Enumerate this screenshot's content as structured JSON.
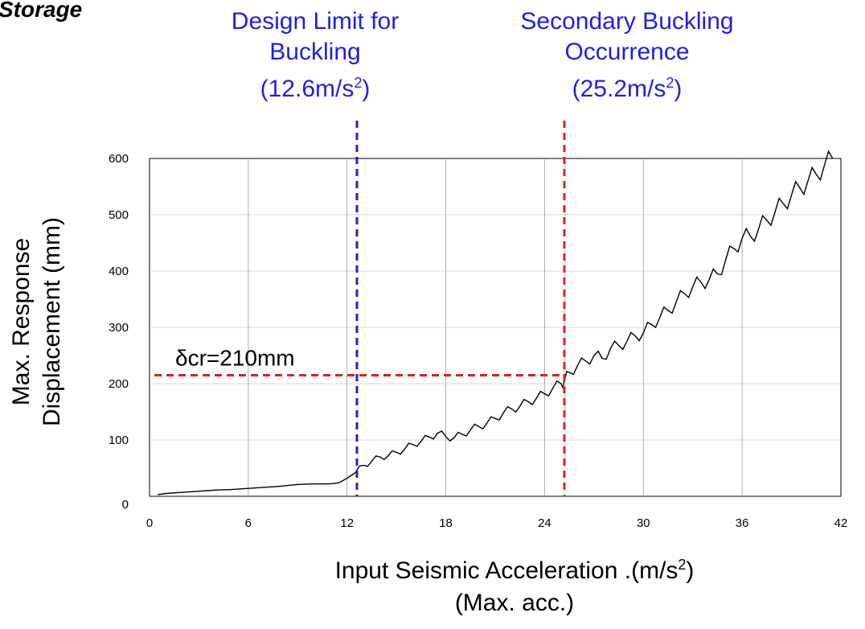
{
  "page_title_fragment": "Storage",
  "annotations": {
    "design_limit": {
      "line1": "Design Limit for",
      "line2": "Buckling",
      "line3": "(12.6m/s",
      "sup": "2",
      "close": ")",
      "x": 12.6
    },
    "secondary": {
      "line1": "Secondary Buckling",
      "line2": "Occurrence",
      "line3": "(25.2m/s",
      "sup": "2",
      "close": ")",
      "x": 25.2
    },
    "delta_cr": {
      "label": "δcr=210mm",
      "y": 215
    }
  },
  "axes": {
    "xlabel_main": "Input Seismic Acceleration .(m/s",
    "xlabel_sup": "2",
    "xlabel_close": ")",
    "xlabel_line2": "(Max. acc.)",
    "ylabel_line1": "Max. Response",
    "ylabel_line2": "Displacement (mm)"
  },
  "colors": {
    "design_limit": "#2020d0",
    "secondary": "#e02020",
    "delta_cr": "#e02020",
    "series": "#000000",
    "grid": "#9a9a9a"
  },
  "chart_data": {
    "type": "line",
    "xlim": [
      0,
      42
    ],
    "ylim": [
      0,
      600
    ],
    "xticks": [
      0,
      6,
      12,
      18,
      24,
      30,
      36,
      42
    ],
    "yticks": [
      0,
      100,
      200,
      300,
      400,
      500,
      600
    ],
    "grid": true,
    "series": [
      {
        "x": [
          0.5,
          1,
          2,
          3,
          4,
          5,
          6,
          7,
          8,
          9,
          10,
          11,
          11.5,
          12,
          12.5,
          13,
          13.5,
          14,
          14.5,
          15,
          15.5,
          16,
          16.5,
          17,
          17.5,
          18,
          18.5,
          19,
          19.5,
          20,
          20.5,
          21,
          21.5,
          22,
          22.5,
          23,
          23.5,
          24,
          24.5,
          25,
          25.2,
          25.5,
          26,
          26.5,
          27,
          27.5,
          28,
          28.5,
          29,
          29.5,
          30,
          30.5,
          31,
          31.5,
          32,
          32.5,
          33,
          33.5,
          34,
          34.5,
          35,
          35.5,
          36,
          36.5,
          37,
          37.5,
          38,
          38.5,
          39,
          39.5,
          40,
          40.5,
          41,
          41.5
        ],
        "y": [
          3,
          5,
          7,
          9,
          11,
          12,
          14,
          16,
          18,
          21,
          22,
          22,
          24,
          32,
          42,
          55,
          62,
          70,
          72,
          78,
          84,
          92,
          98,
          105,
          112,
          106,
          104,
          110,
          118,
          124,
          130,
          138,
          148,
          155,
          160,
          168,
          174,
          182,
          192,
          200,
          205,
          220,
          232,
          240,
          250,
          245,
          262,
          268,
          275,
          285,
          290,
          305,
          318,
          330,
          345,
          360,
          372,
          380,
          385,
          395,
          420,
          440,
          458,
          462,
          475,
          490,
          505,
          520,
          535,
          548,
          560,
          572,
          588,
          600
        ]
      }
    ]
  }
}
